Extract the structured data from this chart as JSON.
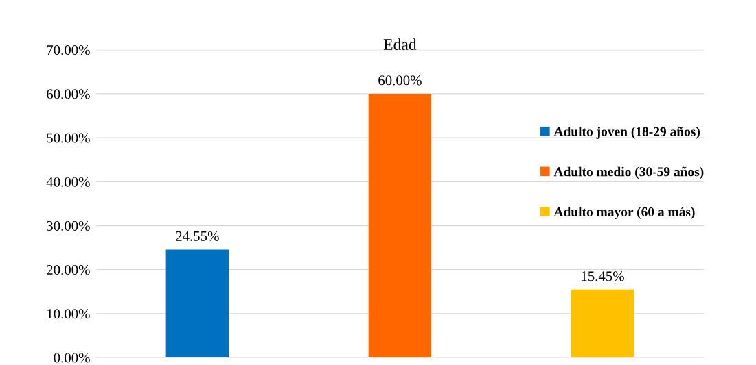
{
  "chart_data": {
    "type": "bar",
    "title": "Edad",
    "categories": [
      null,
      null,
      null
    ],
    "series": [
      {
        "name": "Adulto joven (18-29 años)",
        "color": "#0070c0",
        "values": [
          24.55,
          null,
          null
        ],
        "value_labels": [
          "24.55%",
          null,
          null
        ]
      },
      {
        "name": "Adulto medio (30-59 años)",
        "color": "#ff6600",
        "values": [
          null,
          60.0,
          null
        ],
        "value_labels": [
          null,
          "60.00%",
          null
        ]
      },
      {
        "name": "Adulto mayor (60 a más)",
        "color": "#ffc000",
        "values": [
          null,
          null,
          15.45
        ],
        "value_labels": [
          null,
          null,
          "15.45%"
        ]
      }
    ],
    "ylim": [
      0,
      70
    ],
    "yticks": [
      {
        "value": 0,
        "label": "0.00%"
      },
      {
        "value": 10,
        "label": "10.00%"
      },
      {
        "value": 20,
        "label": "20.00%"
      },
      {
        "value": 30,
        "label": "30.00%"
      },
      {
        "value": 40,
        "label": "40.00%"
      },
      {
        "value": 50,
        "label": "50.00%"
      },
      {
        "value": 60,
        "label": "60.00%"
      },
      {
        "value": 70,
        "label": "70.00%"
      }
    ],
    "grid": "y",
    "legend": "right"
  }
}
